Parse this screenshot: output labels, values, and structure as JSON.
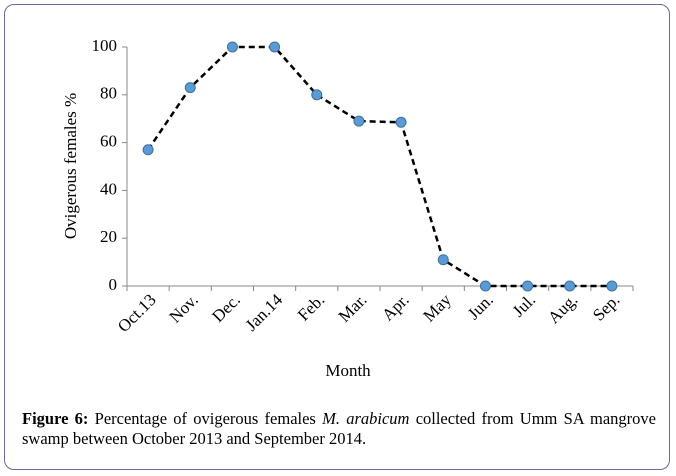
{
  "chart_data": {
    "type": "line",
    "categories": [
      "Oct.13",
      "Nov.",
      "Dec.",
      "Jan.14",
      "Feb.",
      "Mar.",
      "Apr.",
      "May",
      "Jun.",
      "Jul.",
      "Aug.",
      "Sep."
    ],
    "values": [
      57,
      83,
      100,
      100,
      80,
      69,
      68.5,
      11,
      0,
      0,
      0,
      0
    ],
    "x_label": "Month",
    "y_label": "Ovigerous females %",
    "ylim": [
      0,
      100
    ],
    "yticks": [
      0,
      20,
      40,
      60,
      80,
      100
    ],
    "line_color": "#000000",
    "marker_color": "#5b9bd5",
    "line_style": "dashed"
  },
  "caption": {
    "label": "Figure 6:",
    "text_before": " Percentage of ovigerous females ",
    "species": "M. arabicum",
    "text_after": " collected from Umm SA mangrove swamp between October 2013 and September 2014."
  }
}
